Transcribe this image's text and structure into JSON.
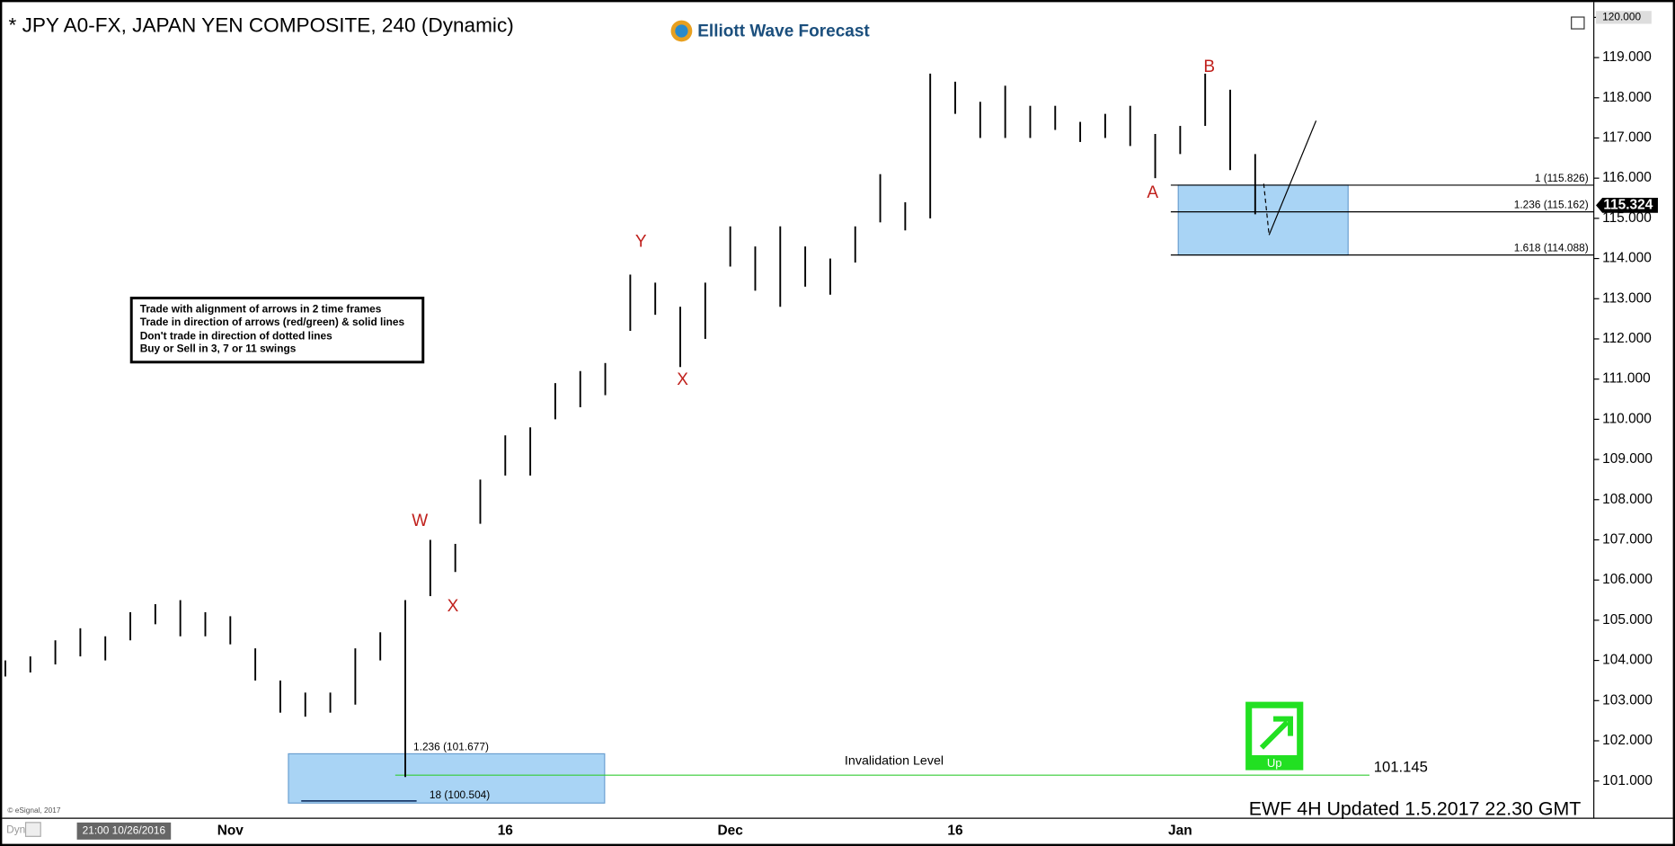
{
  "chart_data": {
    "type": "range-bar",
    "title": "* JPY A0-FX, JAPAN YEN COMPOSITE, 240 (Dynamic)",
    "brand": "Elliott Wave Forecast",
    "color": "#000000",
    "categories": [
      null,
      null,
      null,
      null,
      null,
      null,
      null,
      null,
      null,
      "Nov",
      null,
      null,
      null,
      null,
      null,
      null,
      null,
      null,
      null,
      null,
      "16",
      null,
      null,
      null,
      null,
      null,
      null,
      null,
      null,
      "Dec",
      null,
      null,
      null,
      null,
      null,
      null,
      null,
      null,
      "16",
      null,
      null,
      null,
      null,
      null,
      null,
      null,
      null,
      "Jan",
      null,
      null,
      null
    ],
    "high": [
      104.0,
      104.1,
      104.5,
      104.8,
      104.6,
      105.2,
      105.4,
      105.5,
      105.2,
      105.1,
      104.3,
      103.5,
      103.2,
      103.2,
      104.3,
      104.7,
      105.5,
      107.0,
      106.9,
      108.5,
      109.6,
      109.8,
      110.9,
      111.2,
      111.4,
      113.6,
      113.4,
      112.8,
      113.4,
      114.8,
      114.3,
      114.8,
      114.3,
      114.0,
      114.8,
      116.1,
      115.4,
      118.6,
      118.4,
      117.9,
      118.3,
      117.8,
      117.8,
      117.4,
      117.6,
      117.8,
      117.1,
      117.3,
      118.6,
      118.2,
      116.6
    ],
    "low": [
      103.6,
      103.7,
      103.9,
      104.1,
      104.0,
      104.5,
      104.9,
      104.6,
      104.6,
      104.4,
      103.5,
      102.7,
      102.6,
      102.7,
      102.9,
      104.0,
      101.1,
      105.6,
      106.2,
      107.4,
      108.6,
      108.6,
      110.0,
      110.3,
      110.6,
      112.2,
      112.6,
      111.3,
      112.0,
      113.8,
      113.2,
      112.8,
      113.3,
      113.1,
      113.9,
      114.9,
      114.7,
      115.0,
      117.6,
      117.0,
      117.0,
      117.0,
      117.2,
      116.9,
      117.0,
      116.8,
      116.0,
      116.6,
      117.3,
      116.2,
      115.1
    ],
    "ylim": [
      100.1,
      120.3
    ],
    "yticks": [
      {
        "value": 101,
        "label": "101.000"
      },
      {
        "value": 102,
        "label": "102.000"
      },
      {
        "value": 103,
        "label": "103.000"
      },
      {
        "value": 104,
        "label": "104.000"
      },
      {
        "value": 105,
        "label": "105.000"
      },
      {
        "value": 106,
        "label": "106.000"
      },
      {
        "value": 107,
        "label": "107.000"
      },
      {
        "value": 108,
        "label": "108.000"
      },
      {
        "value": 109,
        "label": "109.000"
      },
      {
        "value": 110,
        "label": "110.000"
      },
      {
        "value": 111,
        "label": "111.000"
      },
      {
        "value": 112,
        "label": "112.000"
      },
      {
        "value": 113,
        "label": "113.000"
      },
      {
        "value": 114,
        "label": "114.000"
      },
      {
        "value": 115,
        "label": "115.000"
      },
      {
        "value": 116,
        "label": "116.000"
      },
      {
        "value": 117,
        "label": "117.000"
      },
      {
        "value": 118,
        "label": "118.000"
      },
      {
        "value": 119,
        "label": "119.000"
      },
      {
        "value": 120,
        "label": "120.000"
      }
    ],
    "last_price": 115.324,
    "fib_levels": [
      {
        "value": 115.826,
        "label": "1 (115.826)"
      },
      {
        "value": 115.162,
        "label": "1.236 (115.162)"
      },
      {
        "value": 114.088,
        "label": "1.618 (114.088)"
      }
    ],
    "lower_levels": [
      {
        "value": 101.677,
        "label": "1.236 (101.677)"
      },
      {
        "value": 100.504,
        "label": "18 (100.504)"
      }
    ],
    "invalidation": {
      "label": "Invalidation Level",
      "value": 101.145
    },
    "wave_labels": [
      "W",
      "X",
      "Y",
      "X",
      "A",
      "B"
    ],
    "rules": [
      "Trade with alignment of arrows in 2 time frames",
      "Trade in direction of arrows (red/green) & solid lines",
      "Don't trade in direction of dotted lines",
      "Buy or Sell in 3, 7 or 11 swings"
    ],
    "signal": "Up",
    "footer": "EWF 4H Updated 1.5.2017 22.30 GMT",
    "copyright": "© eSignal, 2017",
    "mode": "Dyn",
    "start_time": "21:00 10/26/2016"
  }
}
